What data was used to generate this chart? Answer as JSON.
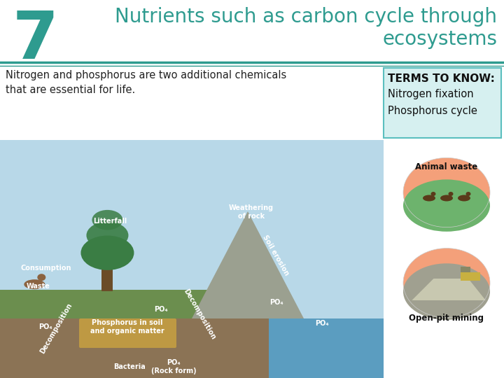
{
  "number": "7",
  "title_line1": "Nutrients such as carbon cycle through",
  "title_line2": "ecosystems",
  "number_color": "#2e9b8f",
  "title_color": "#2e9b8f",
  "body_text": "Nitrogen and phosphorus are two additional chemicals\nthat are essential for life.",
  "terms_title": "TERMS TO KNOW:",
  "terms_list": [
    "Nitrogen fixation",
    "Phosphorus cycle"
  ],
  "terms_bg": "#d6f0f0",
  "terms_border": "#5bbfbf",
  "bg_color": "#ffffff",
  "separator_color": "#2e9b8f",
  "header_bg": "#ffffff",
  "circle1_label": "Animal waste",
  "circle2_label": "Open-pit mining",
  "main_image_bg": "#c8e0d0",
  "circle_top_color": "#f4a07a",
  "circle_grass_color": "#6db36d",
  "circle_rock_color": "#b0b0a0"
}
